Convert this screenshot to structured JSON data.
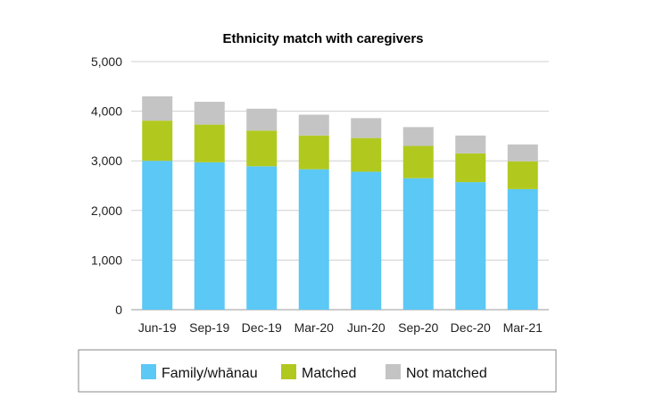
{
  "chart_data": {
    "type": "bar",
    "stacked": true,
    "title": "Ethnicity match with caregivers",
    "xlabel": "",
    "ylabel": "",
    "categories": [
      "Jun-19",
      "Sep-19",
      "Dec-19",
      "Mar-20",
      "Jun-20",
      "Sep-20",
      "Dec-20",
      "Mar-21"
    ],
    "series": [
      {
        "name": "Family/whānau",
        "color": "#5bc8f5",
        "values": [
          3000,
          2970,
          2890,
          2830,
          2780,
          2650,
          2570,
          2430
        ]
      },
      {
        "name": "Matched",
        "color": "#b1c91f",
        "values": [
          810,
          760,
          720,
          680,
          680,
          650,
          580,
          560
        ]
      },
      {
        "name": "Not matched",
        "color": "#c4c4c4",
        "values": [
          490,
          460,
          440,
          420,
          400,
          380,
          360,
          340
        ]
      }
    ],
    "ylim": [
      0,
      5000
    ],
    "yticks": [
      0,
      1000,
      2000,
      3000,
      4000,
      5000
    ],
    "ytick_labels": [
      "0",
      "1,000",
      "2,000",
      "3,000",
      "4,000",
      "5,000"
    ],
    "grid": true,
    "legend_position": "bottom"
  }
}
